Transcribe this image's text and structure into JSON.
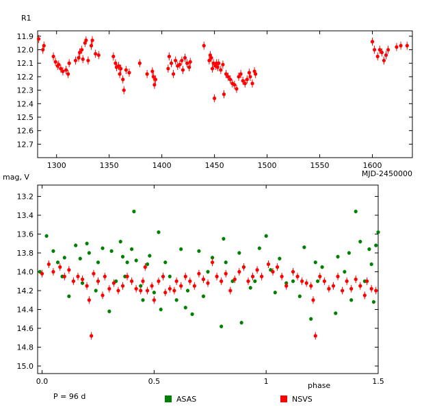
{
  "colors": {
    "nsvs": "#ff0000",
    "asas": "#008000",
    "frame": "#000000",
    "background": "#ffffff"
  },
  "chart_data": [
    {
      "type": "scatter",
      "name": "light-curve",
      "ylabel": "R1",
      "xlabel": "MJD-2450000",
      "xlim": [
        1282,
        1638
      ],
      "ylim": [
        11.86,
        12.8
      ],
      "y_inverted": true,
      "xticks": [
        1300,
        1350,
        1400,
        1450,
        1500,
        1550,
        1600
      ],
      "yticks": [
        11.9,
        12.0,
        12.1,
        12.2,
        12.3,
        12.4,
        12.5,
        12.6,
        12.7
      ],
      "series": [
        {
          "name": "NSVS",
          "x": [
            1283,
            1287,
            1288,
            1297,
            1299,
            1301,
            1302,
            1304,
            1306,
            1309,
            1311,
            1312,
            1318,
            1321,
            1322,
            1324,
            1325,
            1327,
            1328,
            1330,
            1333,
            1334,
            1337,
            1340,
            1354,
            1356,
            1357,
            1359,
            1360,
            1361,
            1363,
            1364,
            1366,
            1369,
            1379,
            1386,
            1391,
            1392,
            1393,
            1394,
            1406,
            1407,
            1409,
            1411,
            1413,
            1415,
            1417,
            1419,
            1420,
            1422,
            1424,
            1426,
            1427,
            1440,
            1445,
            1446,
            1447,
            1448,
            1449,
            1450,
            1451,
            1452,
            1453,
            1454,
            1456,
            1458,
            1459,
            1461,
            1463,
            1465,
            1467,
            1469,
            1471,
            1473,
            1475,
            1477,
            1479,
            1481,
            1483,
            1484,
            1486,
            1488,
            1489,
            1600,
            1602,
            1605,
            1607,
            1609,
            1611,
            1613,
            1615,
            1623,
            1627,
            1633
          ],
          "y": [
            11.92,
            12.0,
            11.97,
            12.05,
            12.09,
            12.12,
            12.11,
            12.14,
            12.16,
            12.15,
            12.18,
            12.1,
            12.08,
            12.06,
            12.02,
            12.0,
            12.07,
            11.95,
            11.93,
            12.08,
            11.97,
            11.93,
            12.03,
            12.04,
            12.05,
            12.1,
            12.13,
            12.12,
            12.18,
            12.14,
            12.22,
            12.3,
            12.15,
            12.17,
            12.1,
            12.18,
            12.16,
            12.2,
            12.26,
            12.22,
            12.14,
            12.05,
            12.1,
            12.18,
            12.08,
            12.12,
            12.11,
            12.08,
            12.15,
            12.06,
            12.1,
            12.13,
            12.09,
            11.97,
            12.08,
            12.04,
            12.06,
            12.14,
            12.1,
            12.36,
            12.12,
            12.1,
            12.13,
            12.1,
            12.15,
            12.11,
            12.33,
            12.18,
            12.2,
            12.22,
            12.25,
            12.26,
            12.29,
            12.2,
            12.18,
            12.23,
            12.25,
            12.22,
            12.17,
            12.2,
            12.25,
            12.16,
            12.18,
            11.94,
            12.0,
            12.05,
            12.0,
            12.02,
            12.08,
            12.04,
            12.0,
            11.98,
            11.97,
            11.97
          ]
        }
      ]
    },
    {
      "type": "scatter",
      "name": "phased-curve",
      "ylabel": "mag, V",
      "xlabel": "phase",
      "xlim": [
        -0.02,
        1.5
      ],
      "ylim": [
        13.08,
        15.08
      ],
      "y_inverted": true,
      "xticks": [
        0.0,
        0.5,
        1.0,
        1.5
      ],
      "yticks": [
        13.2,
        13.4,
        13.6,
        13.8,
        14.0,
        14.2,
        14.4,
        14.6,
        14.8,
        15.0
      ],
      "period_label": "P = 96 d",
      "legend": [
        "ASAS",
        "NSVS"
      ],
      "legend_position": "bottom",
      "series": [
        {
          "name": "ASAS",
          "x": [
            -0.01,
            0.02,
            0.05,
            0.07,
            0.09,
            0.1,
            0.12,
            0.15,
            0.17,
            0.18,
            0.2,
            0.21,
            0.24,
            0.25,
            0.27,
            0.3,
            0.31,
            0.33,
            0.35,
            0.36,
            0.37,
            0.38,
            0.4,
            0.41,
            0.42,
            0.44,
            0.45,
            0.47,
            0.48,
            0.5,
            0.52,
            0.53,
            0.55,
            0.57,
            0.6,
            0.62,
            0.64,
            0.65,
            0.67,
            0.7,
            0.72,
            0.74,
            0.76,
            0.8,
            0.81,
            0.82,
            0.85,
            0.88,
            0.89,
            0.9,
            0.93,
            0.95,
            0.97,
            1.0,
            1.02,
            1.04,
            1.06,
            1.09,
            1.12,
            1.15,
            1.17,
            1.2,
            1.22,
            1.23,
            1.25,
            1.28,
            1.31,
            1.32,
            1.35,
            1.37,
            1.38,
            1.4,
            1.42,
            1.44,
            1.46,
            1.47,
            1.48,
            1.49,
            1.5
          ],
          "y": [
            14.0,
            13.62,
            13.78,
            13.9,
            14.05,
            13.85,
            14.26,
            13.72,
            13.86,
            14.12,
            13.7,
            13.8,
            14.2,
            13.9,
            13.75,
            14.42,
            13.78,
            14.1,
            13.68,
            13.84,
            14.05,
            13.9,
            13.76,
            13.36,
            13.88,
            14.15,
            14.3,
            13.92,
            13.83,
            14.22,
            13.58,
            14.4,
            13.9,
            14.05,
            14.3,
            13.76,
            14.38,
            14.2,
            14.45,
            13.78,
            14.26,
            14.0,
            13.85,
            14.58,
            13.65,
            13.9,
            14.1,
            13.8,
            14.54,
            13.95,
            14.17,
            14.1,
            13.75,
            13.62,
            13.98,
            14.22,
            13.86,
            14.12,
            14.1,
            14.26,
            13.74,
            14.5,
            13.9,
            14.1,
            13.95,
            14.18,
            14.44,
            13.84,
            14.0,
            13.8,
            14.3,
            13.36,
            13.68,
            14.1,
            13.76,
            13.92,
            14.32,
            13.72,
            13.58
          ],
          "err": 0.02
        },
        {
          "name": "NSVS",
          "x": [
            0.0,
            0.03,
            0.05,
            0.08,
            0.1,
            0.12,
            0.14,
            0.16,
            0.18,
            0.2,
            0.21,
            0.22,
            0.23,
            0.25,
            0.27,
            0.28,
            0.3,
            0.32,
            0.34,
            0.36,
            0.38,
            0.4,
            0.42,
            0.44,
            0.45,
            0.46,
            0.47,
            0.49,
            0.5,
            0.52,
            0.54,
            0.55,
            0.57,
            0.59,
            0.6,
            0.62,
            0.64,
            0.66,
            0.68,
            0.7,
            0.72,
            0.74,
            0.76,
            0.78,
            0.8,
            0.82,
            0.84,
            0.86,
            0.88,
            0.9,
            0.92,
            0.94,
            0.96,
            0.98,
            1.01,
            1.03,
            1.05,
            1.07,
            1.09,
            1.12,
            1.14,
            1.16,
            1.18,
            1.2,
            1.21,
            1.22,
            1.24,
            1.26,
            1.28,
            1.3,
            1.32,
            1.34,
            1.36,
            1.38,
            1.4,
            1.42,
            1.44,
            1.45,
            1.47,
            1.49
          ],
          "y": [
            14.02,
            13.92,
            14.0,
            13.95,
            14.05,
            13.98,
            14.1,
            14.05,
            14.08,
            14.15,
            14.3,
            14.68,
            14.02,
            14.1,
            14.25,
            14.05,
            14.18,
            14.12,
            14.2,
            14.15,
            14.05,
            14.1,
            14.18,
            14.2,
            14.1,
            13.95,
            14.2,
            14.15,
            14.3,
            14.1,
            14.05,
            14.22,
            14.18,
            14.2,
            14.1,
            14.15,
            14.05,
            14.1,
            14.15,
            14.02,
            14.08,
            14.12,
            13.9,
            14.05,
            14.1,
            14.02,
            14.2,
            14.08,
            14.0,
            13.95,
            14.1,
            14.05,
            13.98,
            14.05,
            13.92,
            14.0,
            13.95,
            14.05,
            14.15,
            14.0,
            14.05,
            14.1,
            14.12,
            14.15,
            14.3,
            14.68,
            14.05,
            14.1,
            14.18,
            14.15,
            14.05,
            14.2,
            14.1,
            14.18,
            14.08,
            14.15,
            14.25,
            14.1,
            14.18,
            14.2
          ],
          "err": 0.04
        }
      ]
    }
  ]
}
